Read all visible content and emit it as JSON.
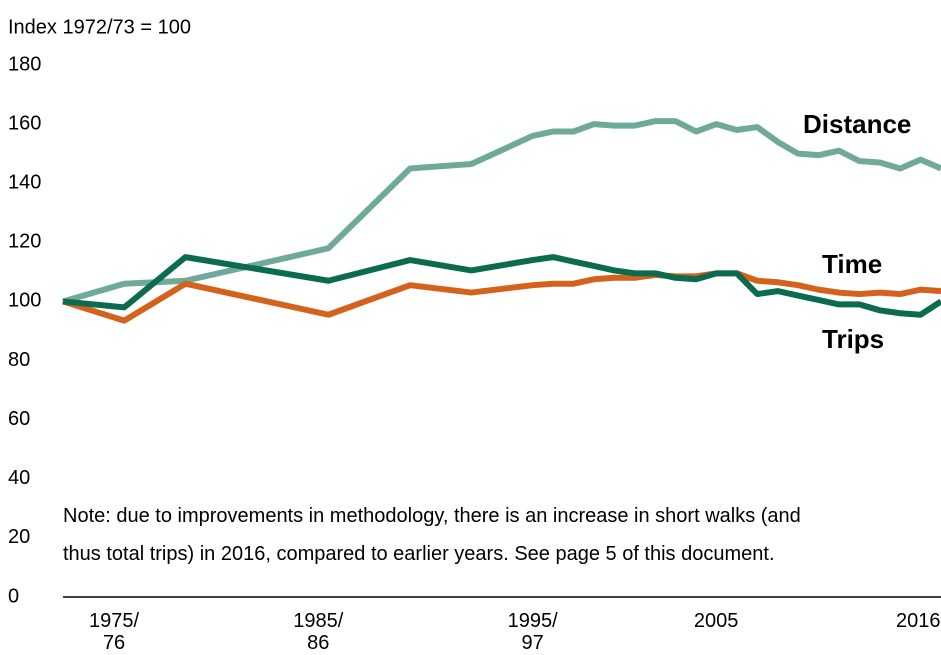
{
  "chart_data": {
    "type": "line",
    "y_axis_label": "Index 1972/73 = 100",
    "note": [
      "Note: due to improvements in methodology, there is an increase in short walks (and",
      "thus total trips) in 2016, compared to earlier years. See page 5 of this document."
    ],
    "x": [
      1973,
      1976,
      1979,
      1986,
      1990,
      1993,
      1996,
      1997,
      1998,
      1999,
      2000,
      2001,
      2002,
      2003,
      2004,
      2005,
      2006,
      2007,
      2008,
      2009,
      2010,
      2011,
      2012,
      2013,
      2014,
      2015,
      2016
    ],
    "series": [
      {
        "name": "Distance",
        "color": "#6fa99a",
        "values": [
          100,
          106,
          107,
          118,
          145,
          146.5,
          156,
          157.5,
          157.5,
          160,
          159.5,
          159.5,
          161,
          161,
          157.5,
          160,
          158,
          159,
          154,
          150,
          149.5,
          151,
          147.5,
          147,
          145,
          148,
          145
        ]
      },
      {
        "name": "Time",
        "color": "#d4621c",
        "values": [
          100,
          93.5,
          106,
          95.5,
          105.5,
          103,
          105.5,
          106,
          106,
          107.5,
          108,
          108,
          109,
          108.5,
          108.5,
          109.5,
          109.5,
          107,
          106.5,
          105.5,
          104,
          103,
          102.5,
          103,
          102.5,
          104,
          103.5
        ]
      },
      {
        "name": "Trips",
        "color": "#0b6b4e",
        "values": [
          100,
          98,
          115,
          107,
          114,
          110.5,
          114,
          115,
          113.5,
          112,
          110.5,
          109.5,
          109.5,
          108,
          107.5,
          109.5,
          109.5,
          102.5,
          103.5,
          102,
          100.5,
          99,
          99,
          97,
          96,
          95.5,
          100
        ]
      }
    ],
    "xlim": [
      1973,
      2016
    ],
    "xticks": [
      {
        "value": 1975.5,
        "label": "1975/\n76"
      },
      {
        "value": 1985.5,
        "label": "1985/\n86"
      },
      {
        "value": 1996,
        "label": "1995/\n97"
      },
      2005,
      2016
    ],
    "ylim": [
      0,
      180
    ],
    "yticks": [
      0,
      20,
      40,
      60,
      80,
      100,
      120,
      140,
      160,
      180
    ],
    "grid": false
  }
}
